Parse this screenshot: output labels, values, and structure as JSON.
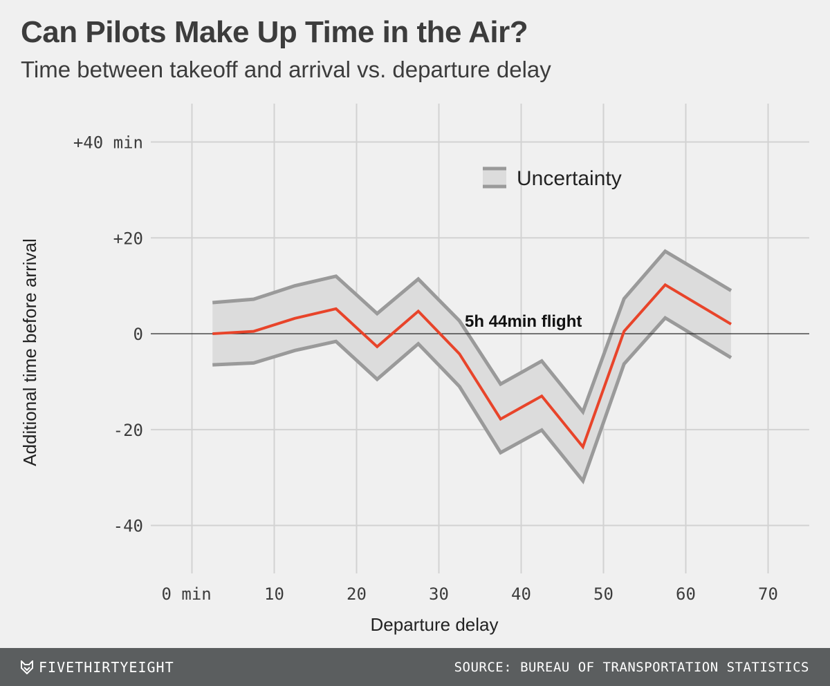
{
  "title": "Can Pilots Make Up Time in the Air?",
  "subtitle": "Time between takeoff and arrival vs. departure delay",
  "footer": {
    "brand": "FIVETHIRTYEIGHT",
    "brand_icon": "fox-logo-icon",
    "source": "SOURCE: BUREAU OF TRANSPORTATION STATISTICS"
  },
  "chart_data": {
    "type": "line",
    "xlabel": "Departure delay",
    "ylabel": "Additional time before arrival",
    "xlim": [
      -5,
      75
    ],
    "ylim": [
      -50,
      48
    ],
    "x_ticks": [
      0,
      10,
      20,
      30,
      40,
      50,
      60,
      70
    ],
    "x_tick_labels": [
      "0 min",
      "10",
      "20",
      "30",
      "40",
      "50",
      "60",
      "70"
    ],
    "y_ticks": [
      40,
      20,
      0,
      -20,
      -40
    ],
    "y_tick_labels": [
      "+40 min",
      "+20",
      "0",
      "-20",
      "-40"
    ],
    "grid": true,
    "x": [
      2.5,
      7.5,
      12.5,
      17.5,
      22.5,
      27.5,
      32.5,
      37.5,
      42.5,
      47.5,
      52.5,
      57.5,
      65.5
    ],
    "series": [
      {
        "values": [
          0,
          0.5,
          3.2,
          5.2,
          -2.7,
          4.7,
          -4.2,
          -17.8,
          -13,
          -23.6,
          0.5,
          10.2,
          2
        ],
        "lower": [
          -6.5,
          -6.1,
          -3.5,
          -1.6,
          -9.5,
          -2.1,
          -11,
          -24.8,
          -20.1,
          -30.7,
          -6.3,
          3.3,
          -5
        ],
        "upper": [
          6.5,
          7.2,
          10,
          12,
          4.2,
          11.4,
          2.7,
          -10.5,
          -5.7,
          -16.3,
          7.3,
          17.2,
          9
        ],
        "color": "#e8442a"
      }
    ],
    "band_fill": "#dcdcdc",
    "band_line_color": "#9a9a9a",
    "legend": {
      "label": "Uncertainty",
      "position": "top-right"
    },
    "annotations": [
      {
        "text": "5h 44min flight",
        "x": 38,
        "y": 0
      }
    ]
  }
}
